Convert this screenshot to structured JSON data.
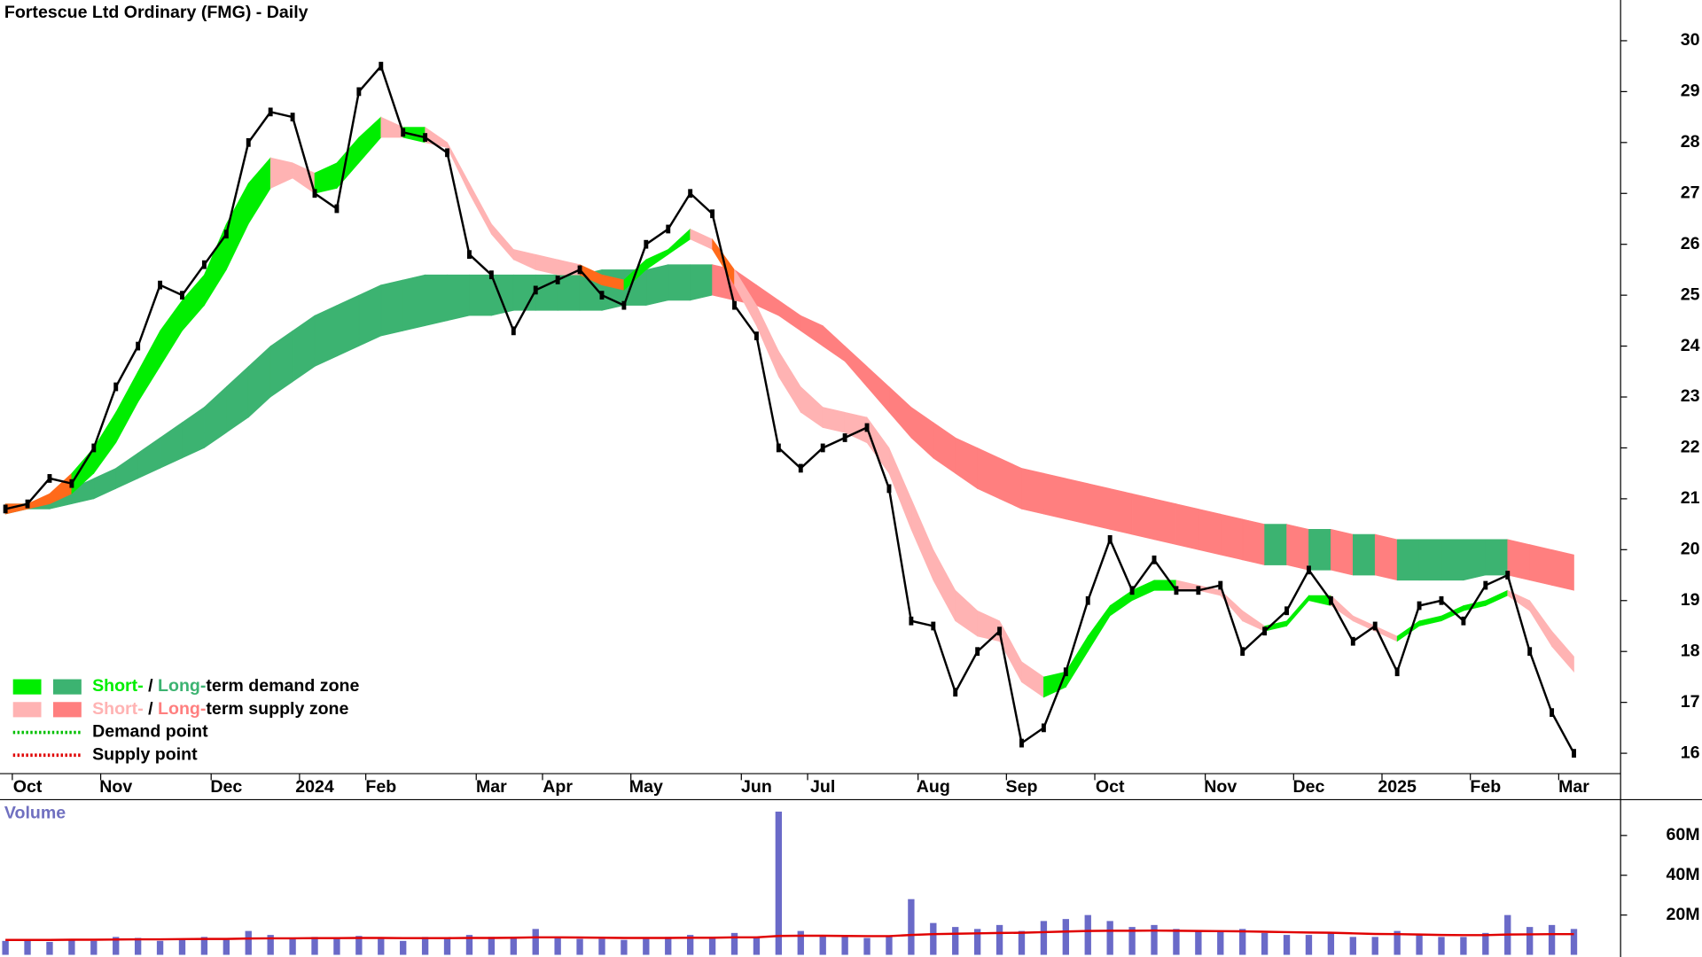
{
  "chart_data": [
    {
      "type": "line",
      "title": "Fortescue Ltd Ordinary (FMG) - Daily",
      "categories": [
        null,
        "Oct",
        null,
        null,
        null,
        "Nov",
        null,
        null,
        null,
        null,
        "Dec",
        null,
        null,
        null,
        "2024",
        null,
        null,
        "Feb",
        null,
        null,
        null,
        null,
        "Mar",
        null,
        null,
        "Apr",
        null,
        null,
        null,
        "May",
        null,
        null,
        null,
        null,
        "Jun",
        null,
        null,
        "Jul",
        null,
        null,
        null,
        null,
        "Aug",
        null,
        null,
        null,
        "Sep",
        null,
        null,
        null,
        "Oct",
        null,
        null,
        null,
        null,
        "Nov",
        null,
        null,
        null,
        "Dec",
        null,
        null,
        null,
        "2025",
        null,
        null,
        null,
        "Feb",
        null,
        null,
        null,
        "Mar"
      ],
      "series": [
        {
          "color": "#000000",
          "values": [
            20.8,
            20.9,
            21.4,
            21.3,
            22.0,
            23.2,
            24.0,
            25.2,
            25.0,
            25.6,
            26.2,
            28.0,
            28.6,
            28.5,
            27.0,
            26.7,
            29.0,
            29.5,
            28.2,
            28.1,
            27.8,
            25.8,
            25.4,
            24.3,
            25.1,
            25.3,
            25.5,
            25.0,
            24.8,
            26.0,
            26.3,
            27.0,
            26.6,
            24.8,
            24.2,
            22.0,
            21.6,
            22.0,
            22.2,
            22.4,
            21.2,
            18.6,
            18.5,
            17.2,
            18.0,
            18.4,
            16.2,
            16.5,
            17.6,
            19.0,
            20.2,
            19.2,
            19.8,
            19.2,
            19.2,
            19.3,
            18.0,
            18.4,
            18.8,
            19.6,
            19.0,
            18.2,
            18.5,
            17.6,
            18.9,
            19.0,
            18.6,
            19.3,
            19.5,
            18.0,
            16.8,
            16.0
          ]
        }
      ],
      "short_zone": {
        "upper": [
          20.9,
          20.9,
          21.1,
          21.5,
          22.0,
          22.7,
          23.5,
          24.3,
          24.9,
          25.4,
          26.4,
          27.2,
          27.7,
          27.6,
          27.4,
          27.6,
          28.1,
          28.5,
          28.3,
          28.3,
          28.0,
          27.2,
          26.4,
          25.9,
          25.8,
          25.7,
          25.6,
          25.4,
          25.3,
          25.7,
          25.9,
          26.3,
          26.1,
          25.5,
          24.8,
          23.9,
          23.2,
          22.8,
          22.7,
          22.6,
          22.0,
          21.0,
          20.0,
          19.2,
          18.8,
          18.6,
          17.8,
          17.5,
          17.6,
          18.3,
          18.9,
          19.2,
          19.4,
          19.4,
          19.3,
          19.2,
          18.8,
          18.5,
          18.6,
          19.1,
          19.1,
          18.7,
          18.5,
          18.3,
          18.6,
          18.7,
          18.9,
          19.0,
          19.2,
          19.0,
          18.4,
          17.9
        ],
        "lower": [
          20.7,
          20.8,
          20.9,
          21.1,
          21.5,
          22.1,
          22.9,
          23.6,
          24.3,
          24.8,
          25.5,
          26.4,
          27.1,
          27.3,
          27.0,
          27.1,
          27.6,
          28.1,
          28.1,
          28.0,
          27.9,
          27.0,
          26.2,
          25.7,
          25.5,
          25.4,
          25.4,
          25.2,
          25.1,
          25.5,
          25.8,
          26.1,
          25.9,
          25.2,
          24.4,
          23.4,
          22.7,
          22.4,
          22.3,
          22.1,
          21.5,
          20.4,
          19.4,
          18.6,
          18.3,
          18.2,
          17.4,
          17.1,
          17.3,
          18.0,
          18.7,
          19.0,
          19.2,
          19.2,
          19.2,
          19.1,
          18.6,
          18.4,
          18.5,
          19.0,
          18.9,
          18.6,
          18.4,
          18.2,
          18.5,
          18.6,
          18.8,
          18.9,
          19.1,
          18.8,
          18.1,
          17.6
        ]
      },
      "long_zone": {
        "upper": [
          20.9,
          20.9,
          21.0,
          21.2,
          21.4,
          21.6,
          21.9,
          22.2,
          22.5,
          22.8,
          23.2,
          23.6,
          24.0,
          24.3,
          24.6,
          24.8,
          25.0,
          25.2,
          25.3,
          25.4,
          25.4,
          25.4,
          25.4,
          25.4,
          25.4,
          25.4,
          25.4,
          25.5,
          25.5,
          25.5,
          25.6,
          25.6,
          25.6,
          25.5,
          25.2,
          24.9,
          24.6,
          24.4,
          24.0,
          23.6,
          23.2,
          22.8,
          22.5,
          22.2,
          22.0,
          21.8,
          21.6,
          21.5,
          21.4,
          21.3,
          21.2,
          21.1,
          21.0,
          20.9,
          20.8,
          20.7,
          20.6,
          20.5,
          20.5,
          20.4,
          20.4,
          20.3,
          20.3,
          20.2,
          20.2,
          20.2,
          20.2,
          20.2,
          20.2,
          20.1,
          20.0,
          19.9
        ],
        "lower": [
          20.7,
          20.8,
          20.8,
          20.9,
          21.0,
          21.2,
          21.4,
          21.6,
          21.8,
          22.0,
          22.3,
          22.6,
          23.0,
          23.3,
          23.6,
          23.8,
          24.0,
          24.2,
          24.3,
          24.4,
          24.5,
          24.6,
          24.6,
          24.7,
          24.7,
          24.7,
          24.7,
          24.7,
          24.8,
          24.8,
          24.9,
          24.9,
          25.0,
          24.9,
          24.8,
          24.6,
          24.3,
          24.0,
          23.7,
          23.2,
          22.7,
          22.2,
          21.8,
          21.5,
          21.2,
          21.0,
          20.8,
          20.7,
          20.6,
          20.5,
          20.4,
          20.3,
          20.2,
          20.1,
          20.0,
          19.9,
          19.8,
          19.7,
          19.7,
          19.6,
          19.6,
          19.5,
          19.5,
          19.4,
          19.4,
          19.4,
          19.4,
          19.5,
          19.5,
          19.4,
          19.3,
          19.2
        ]
      },
      "overlap_color": "#ff6a1a",
      "legend": [
        {
          "short": "Short-",
          "sep": " / ",
          "long": "Long-",
          "text": "term demand zone",
          "colors": [
            "#00ee00",
            "#3cb371"
          ]
        },
        {
          "short": "Short-",
          "sep": " / ",
          "long": "Long-",
          "text": "term supply zone",
          "colors": [
            "#ffb3b3",
            "#ff7f7f"
          ]
        },
        {
          "text": "Demand point",
          "color": "#00c000"
        },
        {
          "text": "Supply point",
          "color": "#e00000"
        }
      ],
      "ylim": [
        15.6,
        30.8
      ],
      "yticks": [
        16,
        17,
        18,
        19,
        20,
        21,
        22,
        23,
        24,
        25,
        26,
        27,
        28,
        29,
        30
      ]
    },
    {
      "type": "bar",
      "title": "Volume",
      "color": "#6a6ac8",
      "values": [
        7000000,
        7500000,
        6500000,
        8000000,
        7000000,
        9000000,
        8500000,
        7000000,
        8000000,
        9000000,
        7500000,
        12000000,
        10000000,
        8000000,
        9000000,
        8000000,
        9500000,
        8000000,
        7000000,
        9000000,
        8000000,
        10000000,
        9000000,
        8500000,
        13000000,
        9000000,
        8000000,
        8000000,
        7500000,
        8000000,
        9000000,
        10000000,
        8500000,
        11000000,
        9000000,
        72000000,
        12000000,
        10000000,
        9000000,
        8500000,
        9000000,
        28000000,
        16000000,
        14000000,
        13000000,
        15000000,
        12000000,
        17000000,
        18000000,
        20000000,
        17000000,
        14000000,
        15000000,
        13000000,
        12000000,
        12000000,
        13000000,
        11000000,
        10000000,
        10000000,
        11000000,
        9000000,
        9000000,
        12000000,
        10000000,
        9000000,
        9000000,
        11000000,
        20000000,
        14000000,
        15000000,
        13000000
      ],
      "ma": {
        "color": "#e00000",
        "values": [
          7500000,
          7500000,
          7500000,
          7600000,
          7600000,
          7700000,
          7800000,
          7800000,
          7900000,
          8000000,
          8000000,
          8200000,
          8300000,
          8300000,
          8400000,
          8400000,
          8500000,
          8500000,
          8400000,
          8400000,
          8400000,
          8500000,
          8500000,
          8600000,
          8800000,
          8800000,
          8700000,
          8600000,
          8500000,
          8500000,
          8500000,
          8600000,
          8600000,
          8800000,
          8800000,
          9500000,
          9600000,
          9600000,
          9500000,
          9400000,
          9400000,
          10000000,
          10400000,
          10600000,
          10800000,
          11000000,
          11100000,
          11400000,
          11700000,
          12000000,
          12100000,
          12100000,
          12200000,
          12100000,
          12000000,
          11900000,
          11800000,
          11600000,
          11400000,
          11200000,
          11100000,
          10800000,
          10500000,
          10400000,
          10200000,
          10000000,
          9900000,
          9900000,
          10200000,
          10300000,
          10400000,
          10400000
        ]
      },
      "ylim": [
        0,
        78000000
      ],
      "yticks": [
        {
          "value": 20000000,
          "label": "20M"
        },
        {
          "value": 40000000,
          "label": "40M"
        },
        {
          "value": 60000000,
          "label": "60M"
        }
      ]
    }
  ]
}
